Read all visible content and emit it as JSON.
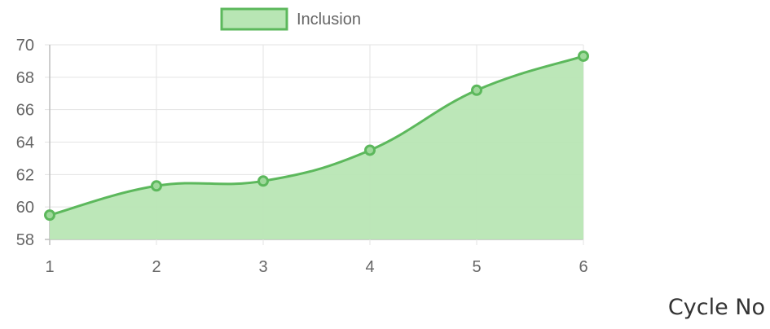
{
  "chart_data": {
    "type": "area",
    "categories": [
      "1",
      "2",
      "3",
      "4",
      "5",
      "6"
    ],
    "x": [
      1,
      2,
      3,
      4,
      5,
      6
    ],
    "series": [
      {
        "name": "Inclusion",
        "values": [
          59.5,
          61.3,
          61.6,
          63.5,
          67.2,
          69.3
        ]
      }
    ],
    "ylim": [
      58,
      70
    ],
    "yticks": [
      "58",
      "60",
      "62",
      "64",
      "66",
      "68",
      "70"
    ],
    "xticks": [
      "1",
      "2",
      "3",
      "4",
      "5",
      "6"
    ],
    "xlabel": "Cycle No",
    "ylabel": "",
    "title": "",
    "grid": true,
    "legend_position": "top",
    "colors": {
      "line": "#5cb85c",
      "fill": "#b8e6b4",
      "grid": "#e3e3e3",
      "axis": "#bdbdbd",
      "tick_text": "#666666"
    }
  }
}
